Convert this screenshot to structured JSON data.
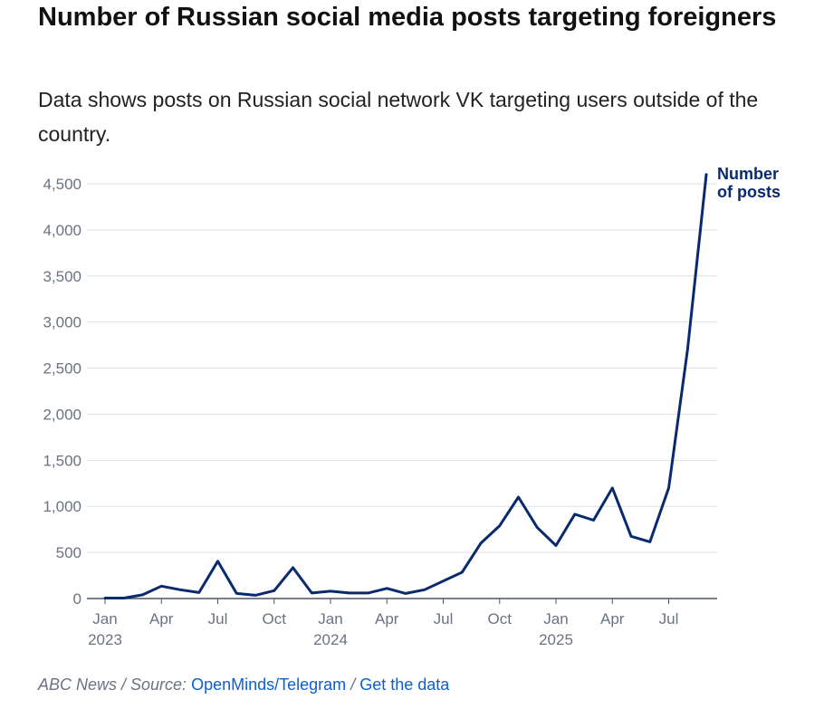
{
  "title": "Number of Russian social media posts targeting foreigners",
  "subtitle": "Data shows posts on Russian social network VK targeting users outside of the country.",
  "footer": {
    "prefix": "ABC News / Source:",
    "source_link": "OpenMinds/Telegram",
    "separator": "/",
    "data_link": "Get the data"
  },
  "colors": {
    "line": "#0a2a6e",
    "grid": "#dcdfe4",
    "axis": "#4b5563"
  },
  "chart_data": {
    "type": "line",
    "title": "Number of Russian social media posts targeting foreigners",
    "xlabel": "",
    "ylabel": "",
    "ylim": [
      0,
      4500
    ],
    "yticks": [
      0,
      500,
      1000,
      1500,
      2000,
      2500,
      3000,
      3500,
      4000,
      4500
    ],
    "ytick_labels": [
      "0",
      "500",
      "1,000",
      "1,500",
      "2,000",
      "2,500",
      "3,000",
      "3,500",
      "4,000",
      "4,500"
    ],
    "xticks": [
      {
        "index": 0,
        "month": "Jan",
        "year": "2023"
      },
      {
        "index": 3,
        "month": "Apr",
        "year": ""
      },
      {
        "index": 6,
        "month": "Jul",
        "year": ""
      },
      {
        "index": 9,
        "month": "Oct",
        "year": ""
      },
      {
        "index": 12,
        "month": "Jan",
        "year": "2024"
      },
      {
        "index": 15,
        "month": "Apr",
        "year": ""
      },
      {
        "index": 18,
        "month": "Jul",
        "year": ""
      },
      {
        "index": 21,
        "month": "Oct",
        "year": ""
      },
      {
        "index": 24,
        "month": "Jan",
        "year": "2025"
      },
      {
        "index": 27,
        "month": "Apr",
        "year": ""
      },
      {
        "index": 30,
        "month": "Jul",
        "year": ""
      }
    ],
    "series": [
      {
        "name": "Number of posts",
        "label_lines": [
          "Number",
          "of posts"
        ],
        "x": [
          "2023-01",
          "2023-02",
          "2023-03",
          "2023-04",
          "2023-05",
          "2023-06",
          "2023-07",
          "2023-08",
          "2023-09",
          "2023-10",
          "2023-11",
          "2023-12",
          "2024-01",
          "2024-02",
          "2024-03",
          "2024-04",
          "2024-05",
          "2024-06",
          "2024-07",
          "2024-08",
          "2024-09",
          "2024-10",
          "2024-11",
          "2024-12",
          "2025-01",
          "2025-02",
          "2025-03",
          "2025-04",
          "2025-05",
          "2025-06",
          "2025-07",
          "2025-08",
          "2025-09"
        ],
        "values": [
          5,
          5,
          40,
          135,
          95,
          65,
          405,
          55,
          35,
          85,
          335,
          60,
          80,
          60,
          60,
          110,
          55,
          95,
          190,
          285,
          600,
          790,
          1100,
          770,
          575,
          915,
          850,
          1200,
          675,
          615,
          1200,
          2700,
          4600
        ]
      }
    ]
  }
}
